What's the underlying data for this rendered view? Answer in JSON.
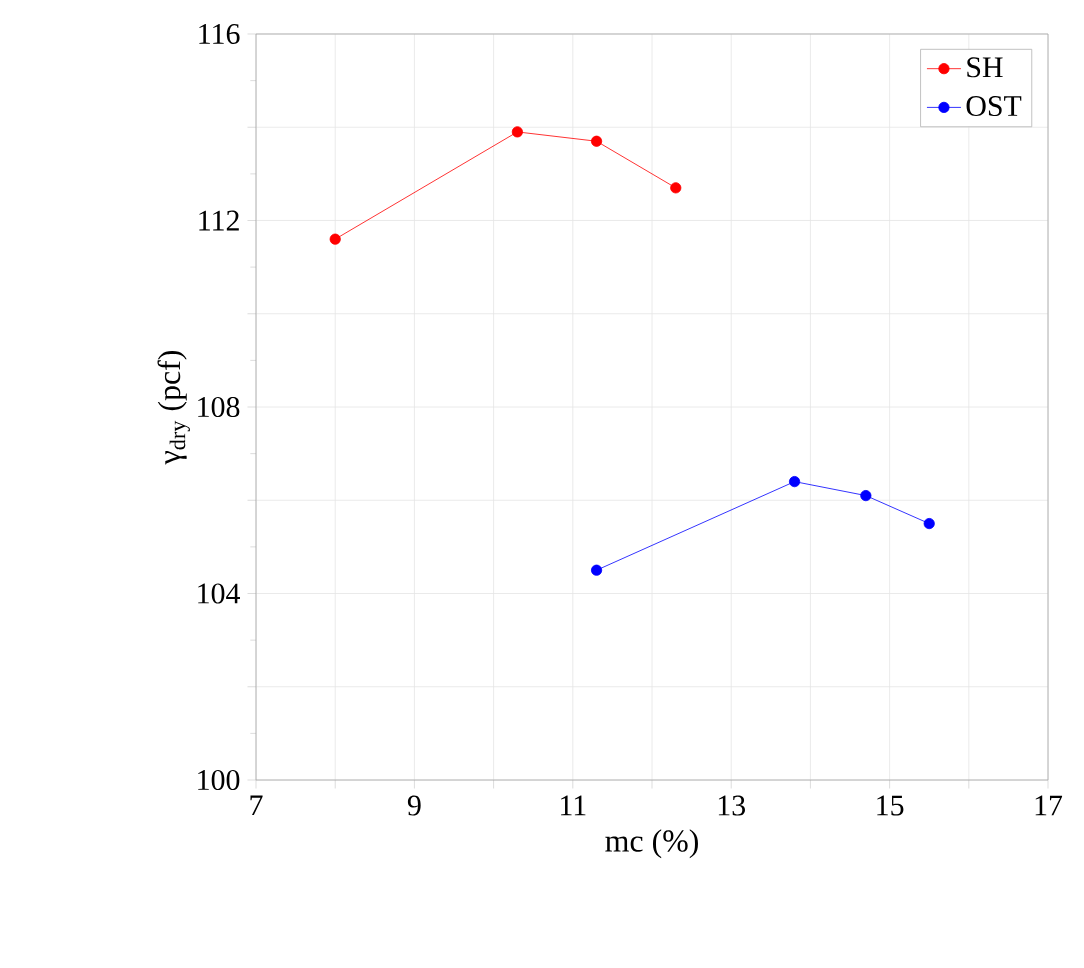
{
  "chart_data": {
    "type": "line",
    "xlabel": "mc (%)",
    "ylabel": "γ$_{dry}$ (pcf)",
    "xlim": [
      7,
      17
    ],
    "ylim": [
      100,
      116
    ],
    "xticks": [
      7,
      {
        "value": 8,
        "label": null
      },
      9,
      {
        "value": 10,
        "label": null
      },
      11,
      {
        "value": 12,
        "label": null
      },
      13,
      {
        "value": 14,
        "label": null
      },
      15,
      {
        "value": 16,
        "label": null
      },
      17
    ],
    "yticks": [
      100,
      {
        "value": 102,
        "label": null
      },
      104,
      {
        "value": 106,
        "label": null
      },
      108,
      {
        "value": 110,
        "label": null
      },
      112,
      {
        "value": 114,
        "label": null
      },
      116
    ],
    "grid": true,
    "legend": "top right",
    "marker": "circle",
    "line_style": "solid",
    "series": [
      {
        "name": "SH",
        "color": "#ff0000",
        "x": [
          8.0,
          10.3,
          11.3,
          12.3
        ],
        "values": [
          111.6,
          113.9,
          113.7,
          112.7
        ]
      },
      {
        "name": "OST",
        "color": "#0000ff",
        "x": [
          11.3,
          13.8,
          14.7,
          15.5
        ],
        "values": [
          104.5,
          106.4,
          106.1,
          105.5
        ]
      }
    ]
  }
}
